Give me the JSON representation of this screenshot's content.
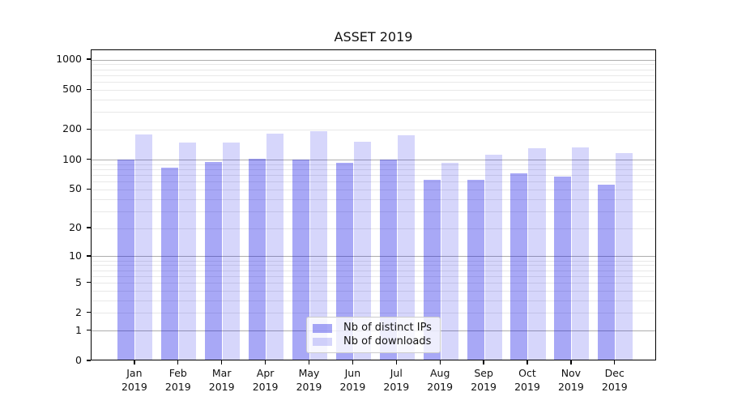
{
  "chart_data": {
    "type": "bar",
    "title": "ASSET 2019",
    "categories": [
      "Jan 2019",
      "Feb 2019",
      "Mar 2019",
      "Apr 2019",
      "May 2019",
      "Jun 2019",
      "Jul 2019",
      "Aug 2019",
      "Sep 2019",
      "Oct 2019",
      "Nov 2019",
      "Dec 2019"
    ],
    "series": [
      {
        "name": "Nb of distinct IPs",
        "fill": "rgba(0,0,230,0.34)",
        "values": [
          97,
          81,
          92,
          100,
          97,
          91,
          97,
          61,
          61,
          70,
          65,
          54
        ]
      },
      {
        "name": "Nb of downloads",
        "fill": "rgba(0,0,230,0.16)",
        "values": [
          173,
          143,
          144,
          178,
          187,
          146,
          170,
          90,
          108,
          126,
          130,
          114
        ]
      }
    ],
    "yscale": "log1p",
    "yticks": [
      0,
      1,
      2,
      5,
      10,
      20,
      50,
      100,
      200,
      500,
      1000
    ],
    "ylim": [
      0,
      1250
    ],
    "xlabel": "",
    "ylabel": "",
    "grid": {
      "orientation": "horizontal",
      "major_lines": [
        1,
        10,
        100,
        1000
      ],
      "minor_lines": [
        2,
        3,
        4,
        5,
        6,
        7,
        8,
        9,
        20,
        30,
        40,
        50,
        60,
        70,
        80,
        90,
        200,
        300,
        400,
        500,
        600,
        700,
        800,
        900
      ],
      "major_color": "#adadad",
      "minor_color": "#e8e8e8"
    },
    "legend_position": "inside-bottom-center"
  }
}
